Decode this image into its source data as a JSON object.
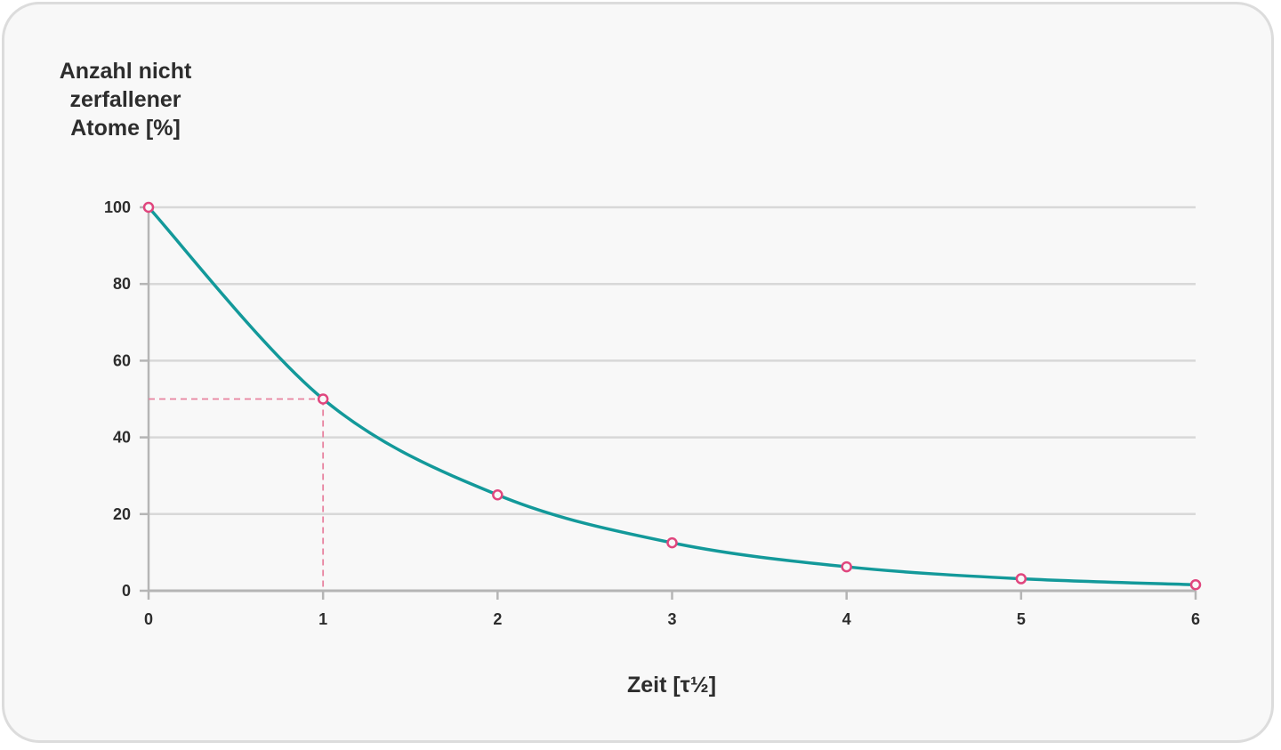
{
  "chart_data": {
    "type": "line",
    "ylabel_lines": [
      "Anzahl nicht",
      "zerfallener",
      "Atome [%]"
    ],
    "xlabel": "Zeit [τ½]",
    "x": [
      0,
      1,
      2,
      3,
      4,
      5,
      6
    ],
    "series": [
      {
        "values": [
          100,
          50,
          25,
          12.5,
          6.25,
          3.125,
          1.5625
        ],
        "color": "#13999a"
      }
    ],
    "marker_color": "#e0467e",
    "xticks": [
      "0",
      "1",
      "2",
      "3",
      "4",
      "5",
      "6"
    ],
    "yticks": [
      "0",
      "20",
      "40",
      "60",
      "80",
      "100"
    ],
    "xlim": [
      0,
      6
    ],
    "ylim": [
      0,
      100
    ],
    "grid": true,
    "highlight": {
      "x": 1,
      "y": 50,
      "color": "#e8829f"
    }
  }
}
